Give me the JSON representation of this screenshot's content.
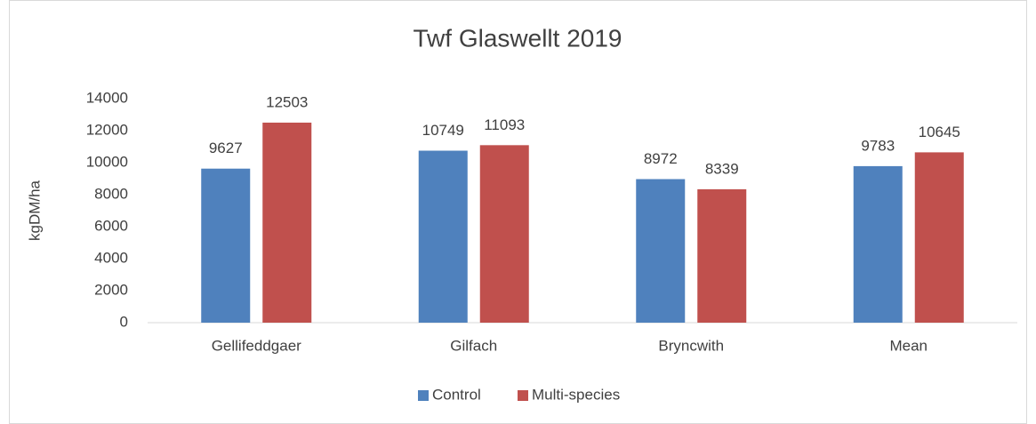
{
  "chart_data": {
    "type": "bar",
    "title": "Twf Glaswellt 2019",
    "y_label": "kgDM/ha",
    "categories": [
      "Gellifeddgaer",
      "Gilfach",
      "Bryncwith",
      "Mean"
    ],
    "series": [
      {
        "name": "Control",
        "color": "#4f81bd",
        "values": [
          9627,
          10749,
          8972,
          9783
        ]
      },
      {
        "name": "Multi-species",
        "color": "#c0504d",
        "values": [
          12503,
          11093,
          8339,
          10645
        ]
      }
    ],
    "ylim": [
      0,
      14000
    ],
    "yticks": [
      0,
      2000,
      4000,
      6000,
      8000,
      10000,
      12000,
      14000
    ],
    "grid": false,
    "legend": "bottom"
  }
}
